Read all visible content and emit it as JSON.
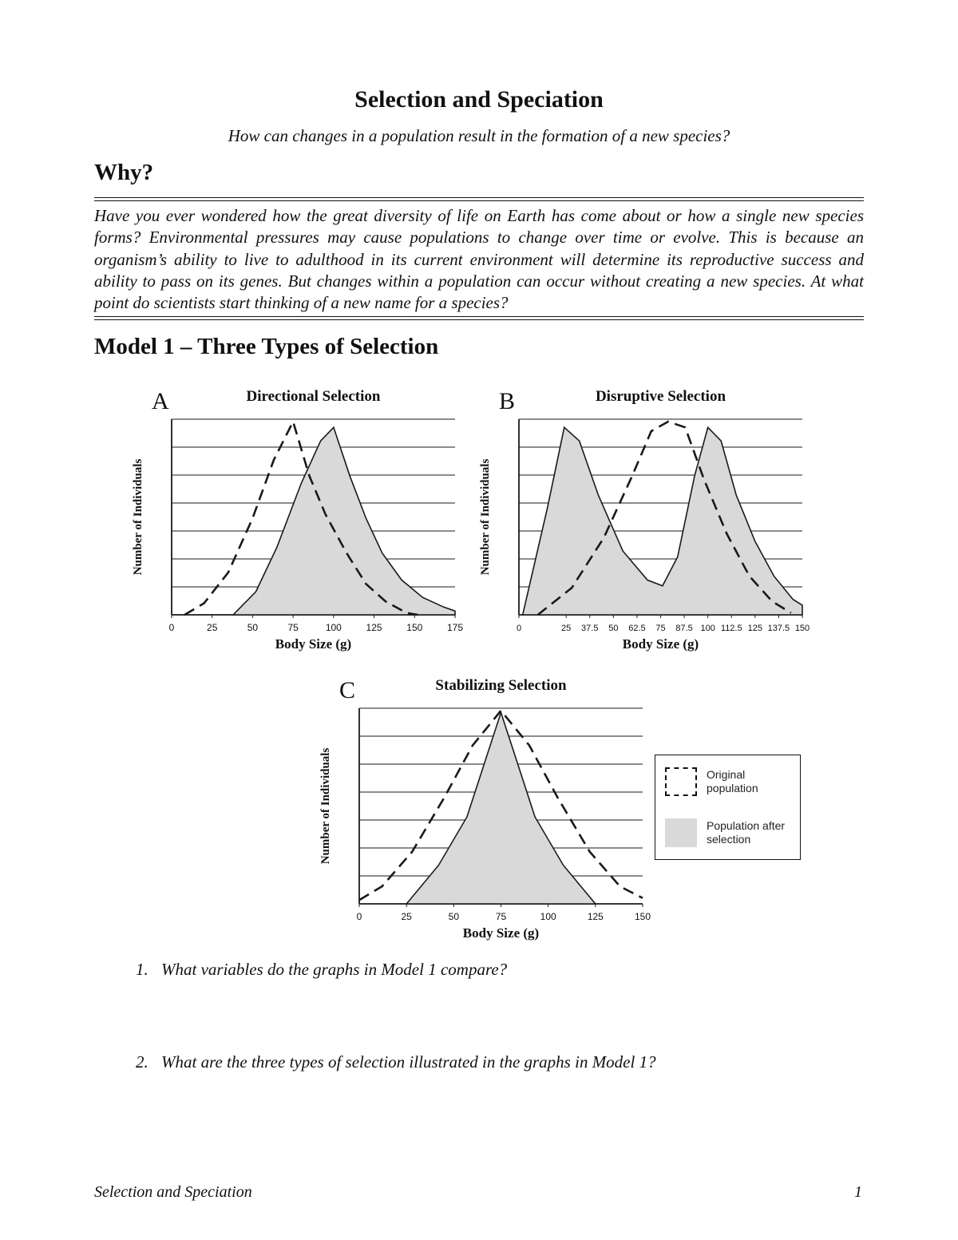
{
  "page": {
    "title": "Selection and Speciation",
    "subtitle": "How can changes in a population result in the formation of a new species?",
    "why_heading": "Why?",
    "why_text": "Have you ever wondered how the great diversity of life on Earth has come about or how a single new species forms? Environmental pressures may cause populations to change over time or evolve. This is because an organism’s ability to live to adulthood in its current environment will determine its reproductive success and ability to pass on its genes. But changes within a population can occur without creating a new species. At what point do scientists start thinking of a new name for a species?",
    "model_heading": "Model 1 – Three Types of Selection",
    "questions": [
      {
        "number": "1.",
        "text": "What variables do the graphs in Model 1 compare?"
      },
      {
        "number": "2.",
        "text": "What are the three types of selection illustrated in the graphs in Model 1?"
      }
    ],
    "footer": {
      "left": "Selection and Speciation",
      "page_number": "1"
    }
  },
  "legend": {
    "original_label": "Original population",
    "after_label": "Population after selection"
  },
  "colors": {
    "fill_gray": "#d9d9d9",
    "ink": "#1a1a1a"
  },
  "chart_data": [
    {
      "type": "area",
      "letter": "A",
      "title": "Directional Selection",
      "xlabel": "Body Size (g)",
      "ylabel": "Number of Individuals",
      "xlim": [
        0,
        175
      ],
      "x_ticks": [
        0,
        25,
        50,
        75,
        100,
        125,
        150,
        175
      ],
      "grid_rows": 7,
      "grid": true,
      "legend_position": "none",
      "series": [
        {
          "name": "Population after selection",
          "style": "filled",
          "points": [
            [
              38,
              0
            ],
            [
              52,
              0.12
            ],
            [
              65,
              0.35
            ],
            [
              80,
              0.68
            ],
            [
              92,
              0.9
            ],
            [
              100,
              0.97
            ],
            [
              110,
              0.72
            ],
            [
              120,
              0.5
            ],
            [
              130,
              0.32
            ],
            [
              142,
              0.18
            ],
            [
              155,
              0.09
            ],
            [
              168,
              0.04
            ],
            [
              175,
              0.02
            ]
          ]
        },
        {
          "name": "Original population",
          "style": "dashed",
          "points": [
            [
              8,
              0
            ],
            [
              20,
              0.06
            ],
            [
              35,
              0.22
            ],
            [
              50,
              0.5
            ],
            [
              63,
              0.8
            ],
            [
              75,
              1.0
            ],
            [
              85,
              0.72
            ],
            [
              95,
              0.52
            ],
            [
              108,
              0.32
            ],
            [
              120,
              0.16
            ],
            [
              132,
              0.07
            ],
            [
              145,
              0.01
            ],
            [
              152,
              0
            ]
          ]
        }
      ]
    },
    {
      "type": "area",
      "letter": "B",
      "title": "Disruptive Selection",
      "xlabel": "Body Size (g)",
      "ylabel": "Number of Individuals",
      "xlim": [
        0,
        150
      ],
      "x_ticks": [
        0,
        25,
        37.5,
        50,
        62.5,
        75,
        87.5,
        100,
        112.5,
        125,
        137.5,
        150
      ],
      "grid_rows": 7,
      "grid": true,
      "legend_position": "none",
      "series": [
        {
          "name": "Population after selection",
          "style": "filled",
          "points": [
            [
              2,
              0
            ],
            [
              15,
              0.55
            ],
            [
              24,
              0.97
            ],
            [
              32,
              0.9
            ],
            [
              42,
              0.62
            ],
            [
              55,
              0.33
            ],
            [
              68,
              0.18
            ],
            [
              76,
              0.15
            ],
            [
              84,
              0.3
            ],
            [
              93,
              0.72
            ],
            [
              100,
              0.97
            ],
            [
              107,
              0.9
            ],
            [
              115,
              0.62
            ],
            [
              125,
              0.38
            ],
            [
              135,
              0.2
            ],
            [
              145,
              0.08
            ],
            [
              150,
              0.05
            ]
          ]
        },
        {
          "name": "Original population",
          "style": "dashed",
          "points": [
            [
              10,
              0
            ],
            [
              28,
              0.14
            ],
            [
              45,
              0.4
            ],
            [
              60,
              0.72
            ],
            [
              70,
              0.95
            ],
            [
              79,
              1.0
            ],
            [
              88,
              0.97
            ],
            [
              98,
              0.7
            ],
            [
              110,
              0.42
            ],
            [
              122,
              0.2
            ],
            [
              134,
              0.07
            ],
            [
              144,
              0.01
            ]
          ]
        }
      ]
    },
    {
      "type": "area",
      "letter": "C",
      "title": "Stabilizing Selection",
      "xlabel": "Body Size (g)",
      "ylabel": "Number of Individuals",
      "xlim": [
        0,
        150
      ],
      "x_ticks": [
        0,
        25,
        50,
        75,
        100,
        125,
        150
      ],
      "grid_rows": 7,
      "grid": true,
      "legend_position": "right",
      "series": [
        {
          "name": "Population after selection",
          "style": "filled",
          "points": [
            [
              25,
              0
            ],
            [
              42,
              0.2
            ],
            [
              57,
              0.45
            ],
            [
              68,
              0.78
            ],
            [
              75,
              0.99
            ],
            [
              82,
              0.78
            ],
            [
              93,
              0.45
            ],
            [
              108,
              0.2
            ],
            [
              125,
              0
            ]
          ]
        },
        {
          "name": "Original population",
          "style": "dashed",
          "points": [
            [
              0,
              0.02
            ],
            [
              12,
              0.09
            ],
            [
              28,
              0.27
            ],
            [
              45,
              0.55
            ],
            [
              60,
              0.82
            ],
            [
              75,
              1.0
            ],
            [
              90,
              0.82
            ],
            [
              105,
              0.55
            ],
            [
              122,
              0.27
            ],
            [
              138,
              0.09
            ],
            [
              150,
              0.03
            ]
          ]
        }
      ]
    }
  ]
}
